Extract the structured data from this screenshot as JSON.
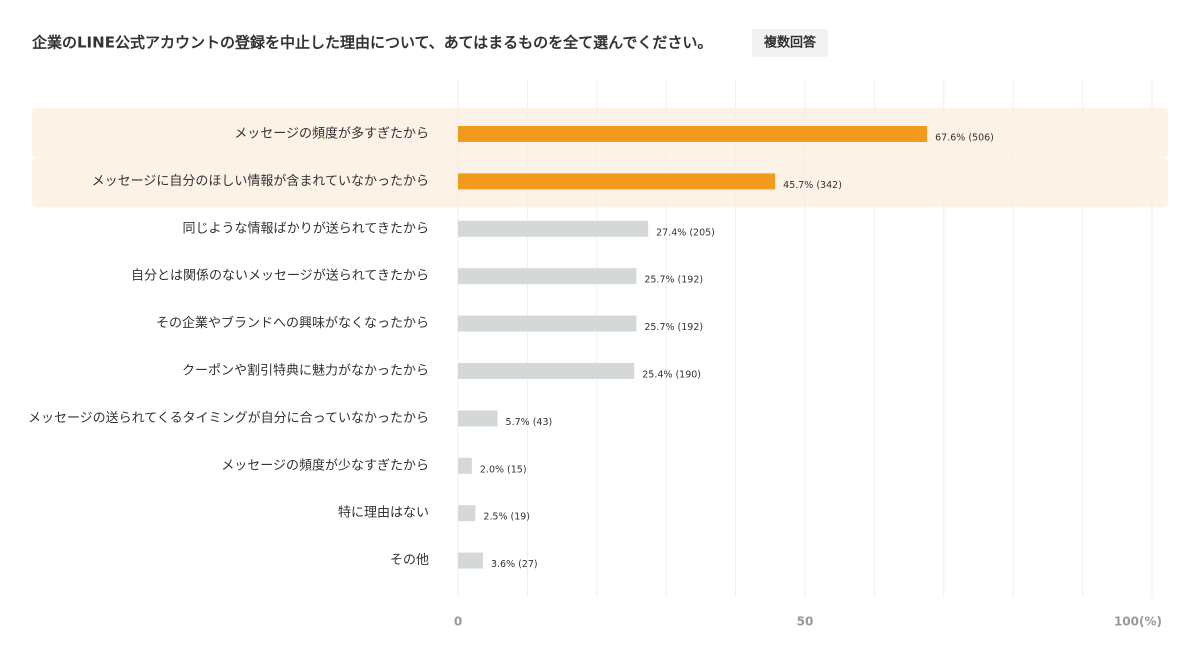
{
  "chart_data": {
    "type": "bar",
    "orientation": "horizontal",
    "title": "企業のLINE公式アカウントの登録を中止した理由について、あてはまるものを全て選んでください。",
    "badge": "複数回答",
    "categories": [
      "メッセージの頻度が多すぎたから",
      "メッセージに自分のほしい情報が含まれていなかったから",
      "同じような情報ばかりが送られてきたから",
      "自分とは関係のないメッセージが送られてきたから",
      "その企業やブランドへの興味がなくなったから",
      "クーポンや割引特典に魅力がなかったから",
      "メッセージの送られてくるタイミングが自分に合っていなかったから",
      "メッセージの頻度が少なすぎたから",
      "特に理由はない",
      "その他"
    ],
    "values": [
      67.6,
      45.7,
      27.4,
      25.7,
      25.7,
      25.4,
      5.7,
      2.0,
      2.5,
      3.6
    ],
    "value_labels": [
      "67.6% (506)",
      "45.7% (342)",
      "27.4% (205)",
      "25.7% (192)",
      "25.7% (192)",
      "25.4% (190)",
      "5.7% (43)",
      "2.0% (15)",
      "2.5% (19)",
      "3.6% (27)"
    ],
    "colors": [
      "#f09a1e",
      "#f09a1e",
      "#d5d8d9",
      "#d5d8d9",
      "#d5d8d9",
      "#d5d8d9",
      "#d5d8d9",
      "#d5d8d9",
      "#d5d8d9",
      "#d5d8d9"
    ],
    "highlighted": [
      true,
      true,
      false,
      false,
      false,
      false,
      false,
      false,
      false,
      false
    ],
    "highlight_color": "#fdf2e6",
    "xlim": [
      0,
      100
    ],
    "xticks": [
      0,
      50,
      {
        "value": 100,
        "label": "100(%)"
      }
    ],
    "xgrid": [
      0,
      10,
      20,
      30,
      40,
      50,
      60,
      70,
      80,
      90,
      100
    ],
    "grid": true
  }
}
